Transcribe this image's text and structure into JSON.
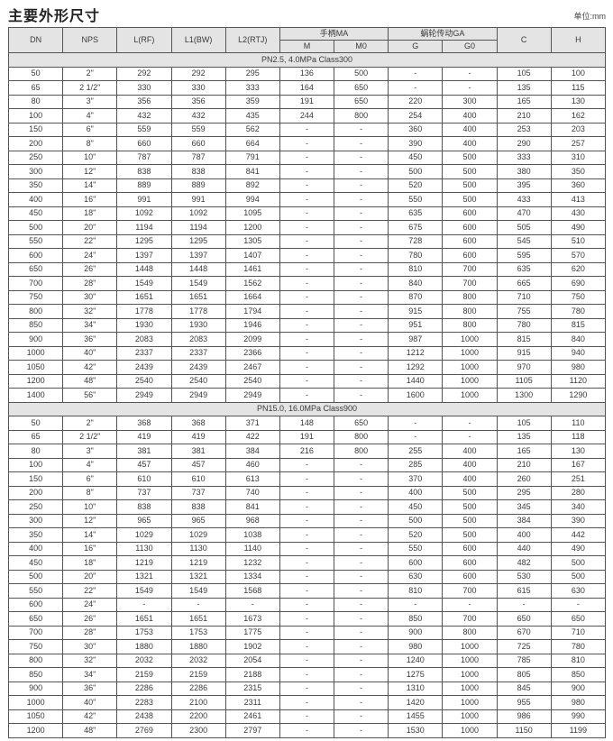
{
  "title": "主要外形尺寸",
  "unit": "单位:mm",
  "header": {
    "dn": "DN",
    "nps": "NPS",
    "l_rf": "L(RF)",
    "l1_bw": "L1(BW)",
    "l2_rtj": "L2(RTJ)",
    "handle_group": "手柄MA",
    "m": "M",
    "m0": "M0",
    "gear_group": "蜗轮传动GA",
    "g": "G",
    "g0": "G0",
    "c": "C",
    "h": "H"
  },
  "sections": [
    {
      "label": "PN2.5, 4.0MPa Class300",
      "rows": [
        [
          "50",
          "2\"",
          "292",
          "292",
          "295",
          "136",
          "500",
          "-",
          "-",
          "105",
          "100"
        ],
        [
          "65",
          "2 1/2\"",
          "330",
          "330",
          "333",
          "164",
          "650",
          "-",
          "-",
          "135",
          "115"
        ],
        [
          "80",
          "3\"",
          "356",
          "356",
          "359",
          "191",
          "650",
          "220",
          "300",
          "165",
          "130"
        ],
        [
          "100",
          "4\"",
          "432",
          "432",
          "435",
          "244",
          "800",
          "254",
          "400",
          "210",
          "162"
        ],
        [
          "150",
          "6\"",
          "559",
          "559",
          "562",
          "-",
          "-",
          "360",
          "400",
          "253",
          "203"
        ],
        [
          "200",
          "8\"",
          "660",
          "660",
          "664",
          "-",
          "-",
          "390",
          "400",
          "290",
          "257"
        ],
        [
          "250",
          "10\"",
          "787",
          "787",
          "791",
          "-",
          "-",
          "450",
          "500",
          "333",
          "310"
        ],
        [
          "300",
          "12\"",
          "838",
          "838",
          "841",
          "-",
          "-",
          "500",
          "500",
          "380",
          "350"
        ],
        [
          "350",
          "14\"",
          "889",
          "889",
          "892",
          "-",
          "-",
          "520",
          "500",
          "395",
          "360"
        ],
        [
          "400",
          "16\"",
          "991",
          "991",
          "994",
          "-",
          "-",
          "550",
          "500",
          "433",
          "413"
        ],
        [
          "450",
          "18\"",
          "1092",
          "1092",
          "1095",
          "-",
          "-",
          "635",
          "600",
          "470",
          "430"
        ],
        [
          "500",
          "20\"",
          "1194",
          "1194",
          "1200",
          "-",
          "-",
          "675",
          "600",
          "505",
          "490"
        ],
        [
          "550",
          "22\"",
          "1295",
          "1295",
          "1305",
          "-",
          "-",
          "728",
          "600",
          "545",
          "510"
        ],
        [
          "600",
          "24\"",
          "1397",
          "1397",
          "1407",
          "-",
          "-",
          "780",
          "600",
          "595",
          "570"
        ],
        [
          "650",
          "26\"",
          "1448",
          "1448",
          "1461",
          "-",
          "-",
          "810",
          "700",
          "635",
          "620"
        ],
        [
          "700",
          "28\"",
          "1549",
          "1549",
          "1562",
          "-",
          "-",
          "840",
          "700",
          "665",
          "690"
        ],
        [
          "750",
          "30\"",
          "1651",
          "1651",
          "1664",
          "-",
          "-",
          "870",
          "800",
          "710",
          "750"
        ],
        [
          "800",
          "32\"",
          "1778",
          "1778",
          "1794",
          "-",
          "-",
          "915",
          "800",
          "755",
          "780"
        ],
        [
          "850",
          "34\"",
          "1930",
          "1930",
          "1946",
          "-",
          "-",
          "951",
          "800",
          "780",
          "815"
        ],
        [
          "900",
          "36\"",
          "2083",
          "2083",
          "2099",
          "-",
          "-",
          "987",
          "1000",
          "815",
          "840"
        ],
        [
          "1000",
          "40\"",
          "2337",
          "2337",
          "2366",
          "-",
          "-",
          "1212",
          "1000",
          "915",
          "940"
        ],
        [
          "1050",
          "42\"",
          "2439",
          "2439",
          "2467",
          "-",
          "-",
          "1292",
          "1000",
          "970",
          "980"
        ],
        [
          "1200",
          "48\"",
          "2540",
          "2540",
          "2540",
          "-",
          "-",
          "1440",
          "1000",
          "1105",
          "1120"
        ],
        [
          "1400",
          "56\"",
          "2949",
          "2949",
          "2949",
          "-",
          "-",
          "1600",
          "1000",
          "1300",
          "1290"
        ]
      ]
    },
    {
      "label": "PN15.0, 16.0MPa Class900",
      "rows": [
        [
          "50",
          "2\"",
          "368",
          "368",
          "371",
          "148",
          "650",
          "-",
          "-",
          "105",
          "110"
        ],
        [
          "65",
          "2 1/2\"",
          "419",
          "419",
          "422",
          "191",
          "800",
          "-",
          "-",
          "135",
          "118"
        ],
        [
          "80",
          "3\"",
          "381",
          "381",
          "384",
          "216",
          "800",
          "255",
          "400",
          "165",
          "130"
        ],
        [
          "100",
          "4\"",
          "457",
          "457",
          "460",
          "-",
          "-",
          "285",
          "400",
          "210",
          "167"
        ],
        [
          "150",
          "6\"",
          "610",
          "610",
          "613",
          "-",
          "-",
          "370",
          "400",
          "260",
          "251"
        ],
        [
          "200",
          "8\"",
          "737",
          "737",
          "740",
          "-",
          "-",
          "400",
          "500",
          "295",
          "280"
        ],
        [
          "250",
          "10\"",
          "838",
          "838",
          "841",
          "-",
          "-",
          "450",
          "500",
          "345",
          "340"
        ],
        [
          "300",
          "12\"",
          "965",
          "965",
          "968",
          "-",
          "-",
          "500",
          "500",
          "384",
          "390"
        ],
        [
          "350",
          "14\"",
          "1029",
          "1029",
          "1038",
          "-",
          "-",
          "520",
          "500",
          "400",
          "442"
        ],
        [
          "400",
          "16\"",
          "1130",
          "1130",
          "1140",
          "-",
          "-",
          "550",
          "600",
          "440",
          "490"
        ],
        [
          "450",
          "18\"",
          "1219",
          "1219",
          "1232",
          "-",
          "-",
          "600",
          "600",
          "482",
          "500"
        ],
        [
          "500",
          "20\"",
          "1321",
          "1321",
          "1334",
          "-",
          "-",
          "630",
          "600",
          "530",
          "500"
        ],
        [
          "550",
          "22\"",
          "1549",
          "1549",
          "1568",
          "-",
          "-",
          "810",
          "700",
          "615",
          "630"
        ],
        [
          "600",
          "24\"",
          "-",
          "-",
          "-",
          "-",
          "-",
          "-",
          "-",
          "-",
          "-"
        ],
        [
          "650",
          "26\"",
          "1651",
          "1651",
          "1673",
          "-",
          "-",
          "850",
          "700",
          "650",
          "650"
        ],
        [
          "700",
          "28\"",
          "1753",
          "1753",
          "1775",
          "-",
          "-",
          "900",
          "800",
          "670",
          "710"
        ],
        [
          "750",
          "30\"",
          "1880",
          "1880",
          "1902",
          "-",
          "-",
          "980",
          "1000",
          "725",
          "780"
        ],
        [
          "800",
          "32\"",
          "2032",
          "2032",
          "2054",
          "-",
          "-",
          "1240",
          "1000",
          "785",
          "810"
        ],
        [
          "850",
          "34\"",
          "2159",
          "2159",
          "2188",
          "-",
          "-",
          "1275",
          "1000",
          "805",
          "850"
        ],
        [
          "900",
          "36\"",
          "2286",
          "2286",
          "2315",
          "-",
          "-",
          "1310",
          "1000",
          "845",
          "900"
        ],
        [
          "1000",
          "40\"",
          "2283",
          "2100",
          "2311",
          "-",
          "-",
          "1420",
          "1000",
          "955",
          "980"
        ],
        [
          "1050",
          "42\"",
          "2438",
          "2200",
          "2461",
          "-",
          "-",
          "1455",
          "1000",
          "986",
          "990"
        ],
        [
          "1200",
          "48\"",
          "2769",
          "2300",
          "2797",
          "-",
          "-",
          "1530",
          "1000",
          "1150",
          "1199"
        ]
      ]
    }
  ]
}
